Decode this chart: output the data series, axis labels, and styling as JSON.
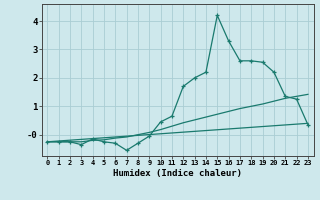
{
  "xlabel": "Humidex (Indice chaleur)",
  "background_color": "#cee8ec",
  "line_color": "#1a7a6e",
  "grid_color": "#aacdd4",
  "x_ticks": [
    0,
    1,
    2,
    3,
    4,
    5,
    6,
    7,
    8,
    9,
    10,
    11,
    12,
    13,
    14,
    15,
    16,
    17,
    18,
    19,
    20,
    21,
    22,
    23
  ],
  "y_ticks": [
    0,
    1,
    2,
    3,
    4
  ],
  "ylim": [
    -0.75,
    4.6
  ],
  "xlim": [
    -0.5,
    23.5
  ],
  "series1_x": [
    0,
    1,
    2,
    3,
    4,
    5,
    6,
    7,
    8,
    9,
    10,
    11,
    12,
    13,
    14,
    15,
    16,
    17,
    18,
    19,
    20,
    21,
    22,
    23
  ],
  "series1_y": [
    -0.25,
    -0.25,
    -0.25,
    -0.35,
    -0.15,
    -0.25,
    -0.3,
    -0.55,
    -0.3,
    -0.05,
    0.45,
    0.65,
    1.7,
    2.0,
    2.2,
    4.2,
    3.3,
    2.6,
    2.6,
    2.55,
    2.2,
    1.35,
    1.25,
    0.35
  ],
  "series2_x": [
    0,
    1,
    2,
    3,
    4,
    5,
    6,
    7,
    8,
    9,
    10,
    11,
    12,
    13,
    14,
    15,
    16,
    17,
    18,
    19,
    20,
    21,
    22,
    23
  ],
  "series2_y": [
    -0.25,
    -0.25,
    -0.25,
    -0.25,
    -0.2,
    -0.18,
    -0.12,
    -0.08,
    0.0,
    0.08,
    0.18,
    0.3,
    0.42,
    0.52,
    0.62,
    0.72,
    0.82,
    0.92,
    1.0,
    1.08,
    1.18,
    1.28,
    1.35,
    1.42
  ],
  "series3_x": [
    0,
    23
  ],
  "series3_y": [
    -0.25,
    0.4
  ]
}
